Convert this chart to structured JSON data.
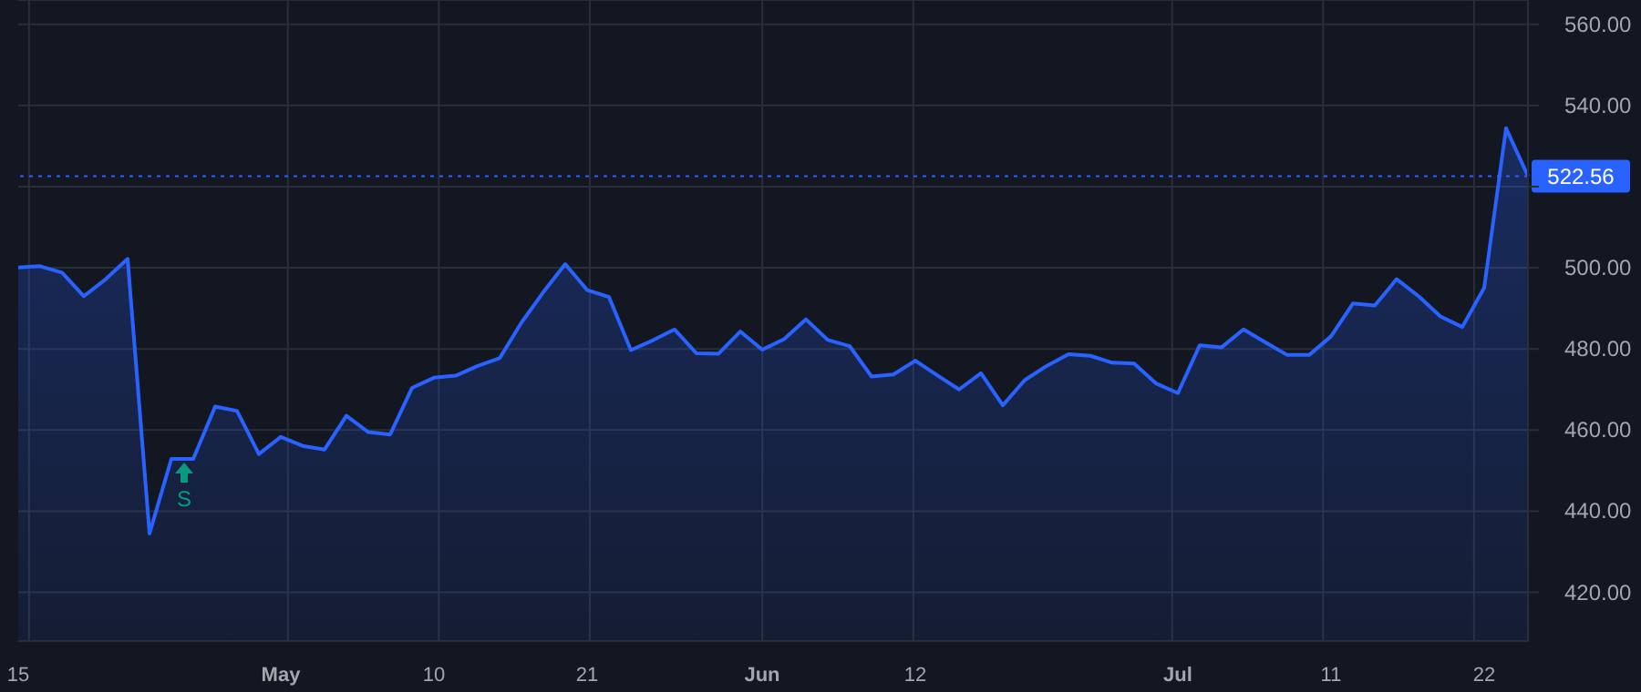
{
  "chart_data": {
    "type": "area",
    "categories": [
      "15",
      null,
      null,
      null,
      null,
      null,
      null,
      null,
      null,
      null,
      null,
      null,
      "May",
      null,
      null,
      null,
      null,
      null,
      null,
      "10",
      null,
      null,
      null,
      null,
      null,
      null,
      "21",
      null,
      null,
      null,
      null,
      null,
      null,
      null,
      "Jun",
      null,
      null,
      null,
      null,
      null,
      null,
      "12",
      null,
      null,
      null,
      null,
      null,
      null,
      null,
      null,
      null,
      null,
      null,
      "Jul",
      null,
      null,
      null,
      null,
      null,
      null,
      "11",
      null,
      null,
      null,
      null,
      null,
      null,
      "22",
      null,
      null
    ],
    "series": [
      {
        "color": "#2962ff",
        "values": [
          500.1,
          500.4,
          498.8,
          493,
          497.2,
          502.2,
          434.5,
          452.9,
          452.9,
          465.8,
          464.7,
          454.1,
          458.3,
          456.1,
          455.2,
          463.5,
          459.5,
          458.9,
          470.4,
          472.9,
          473.4,
          475.8,
          477.7,
          486.5,
          494,
          500.9,
          494.5,
          492.8,
          479.7,
          482.1,
          484.8,
          478.9,
          478.8,
          484.3,
          479.8,
          482.4,
          487.3,
          482.2,
          480.7,
          473.2,
          473.7,
          477.1,
          473.5,
          470,
          474,
          466.1,
          472.3,
          475.8,
          478.7,
          478.3,
          476.6,
          476.4,
          471.5,
          469.1,
          480.9,
          480.4,
          484.8,
          481.6,
          478.5,
          478.5,
          483.1,
          491.2,
          490.7,
          497.2,
          493,
          488,
          485.4,
          495.1,
          534.4,
          522.6
        ]
      }
    ],
    "ylim": [
      408,
      566
    ],
    "yticks": [
      {
        "value": 420,
        "label": "420.00"
      },
      {
        "value": 440,
        "label": "440.00"
      },
      {
        "value": 460,
        "label": "460.00"
      },
      {
        "value": 480,
        "label": "480.00"
      },
      {
        "value": 500,
        "label": "500.00"
      },
      {
        "value": 520,
        "label": null
      },
      {
        "value": 540,
        "label": "540.00"
      },
      {
        "value": 560,
        "label": "560.00"
      }
    ],
    "ref_lines": [
      {
        "axis": "y",
        "value": 522.56,
        "label": "522.56",
        "color": "#2962ff",
        "line_style": "dotted"
      }
    ],
    "annotations": [
      "S"
    ],
    "grid": true
  }
}
